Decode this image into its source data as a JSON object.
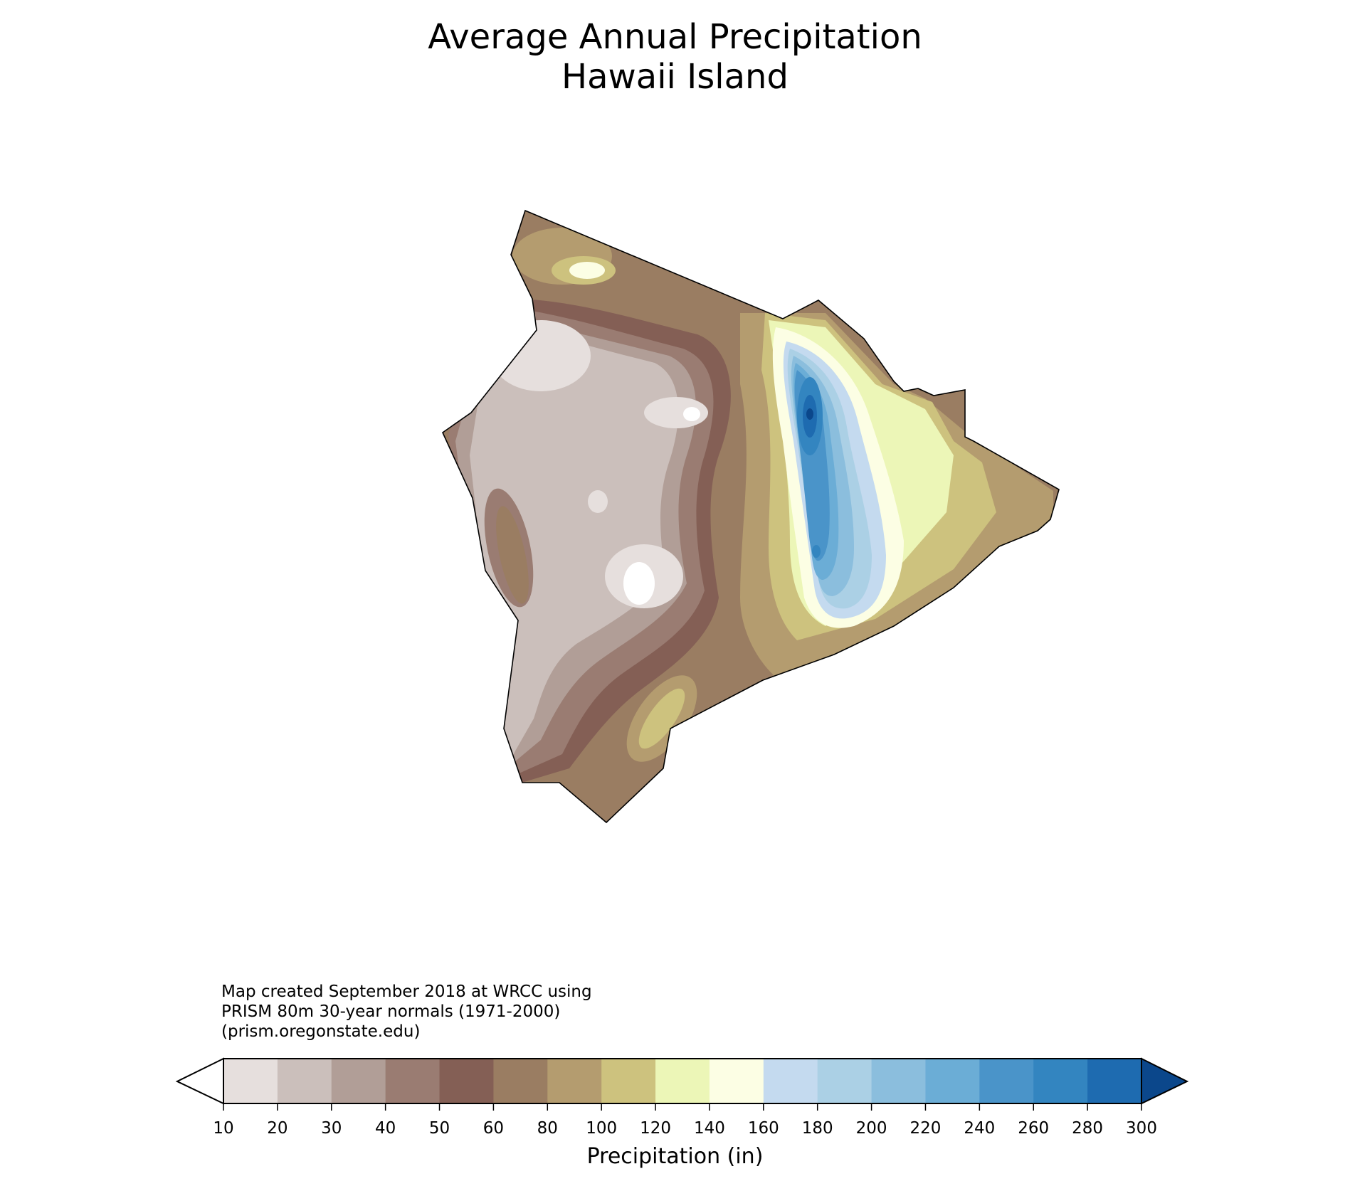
{
  "map": {
    "title_line1": "Average Annual Precipitation",
    "title_line2": "Hawaii Island",
    "credit_line1": "Map created September 2018 at WRCC using",
    "credit_line2": "PRISM 80m 30-year normals (1971-2000)",
    "credit_line3": "(prism.oregonstate.edu)"
  },
  "colorbar": {
    "label": "Precipitation (in)",
    "ticks": [
      "10",
      "20",
      "30",
      "40",
      "50",
      "60",
      "80",
      "100",
      "120",
      "140",
      "160",
      "180",
      "200",
      "220",
      "240",
      "260",
      "280",
      "300"
    ],
    "colors": [
      "#e6dfdd",
      "#cbbfbb",
      "#b19e97",
      "#9a7c72",
      "#845f55",
      "#9a7d62",
      "#b49c6f",
      "#cdc27e",
      "#ecf6b7",
      "#fcfee4",
      "#c4daef",
      "#abd0e5",
      "#8bbedd",
      "#6badd6",
      "#4a94c9",
      "#3385c0",
      "#1e6bb0"
    ],
    "under_color": "#ffffff",
    "over_color": "#0b478b"
  }
}
